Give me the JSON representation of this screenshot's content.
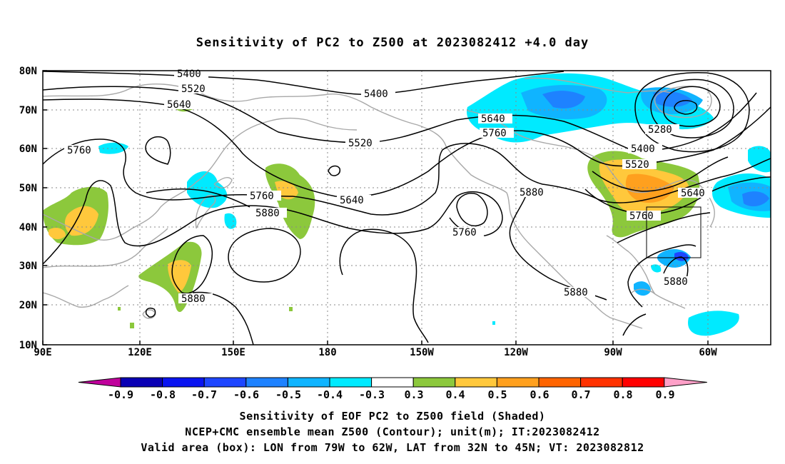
{
  "title": "Sensitivity of PC2 to Z500 at 2023082412 +4.0 day",
  "map": {
    "lat_labels": [
      "80N",
      "70N",
      "60N",
      "50N",
      "40N",
      "30N",
      "20N",
      "10N"
    ],
    "lon_labels": [
      "90E",
      "120E",
      "150E",
      "180",
      "150W",
      "120W",
      "90W",
      "60W"
    ],
    "contour_labels": [
      "5400",
      "5520",
      "5640",
      "5760",
      "5400",
      "5520",
      "5640",
      "5760",
      "5880",
      "5760",
      "5880",
      "5880",
      "5640",
      "5760",
      "5880",
      "5400",
      "5520",
      "5640",
      "5760",
      "5280",
      "5880"
    ],
    "valid_box": {
      "lon_min": -79,
      "lon_max": -62,
      "lat_min": 32,
      "lat_max": 45
    }
  },
  "colorbar": {
    "labels": [
      "-0.9",
      "-0.8",
      "-0.7",
      "-0.6",
      "-0.5",
      "-0.4",
      "-0.3",
      "0.3",
      "0.4",
      "0.5",
      "0.6",
      "0.7",
      "0.8",
      "0.9"
    ],
    "colors": [
      "#c0009c",
      "#0a00b4",
      "#0a14f0",
      "#1e46ff",
      "#1e82ff",
      "#10b4ff",
      "#00eaff",
      "#ffffff",
      "#8cc83c",
      "#ffc83c",
      "#ffa01e",
      "#ff6400",
      "#ff3200",
      "#ff0000",
      "#ffa0c8"
    ]
  },
  "captions": [
    "Sensitivity of EOF PC2 to Z500 field (Shaded)",
    "NCEP+CMC ensemble mean Z500 (Contour); unit(m); IT:2023082412",
    "Valid area (box): LON from 79W to 62W, LAT from 32N to 45N; VT: 2023082812"
  ]
}
